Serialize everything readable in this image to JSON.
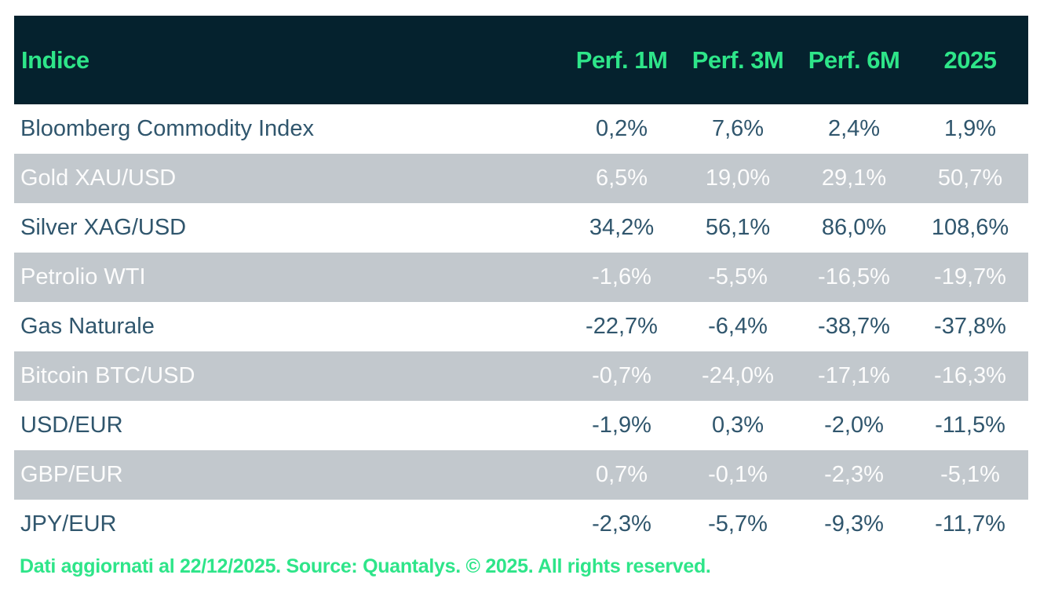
{
  "colors": {
    "header_bg": "#05222e",
    "accent_green": "#2ee589",
    "row_alt_bg": "#c2c8cd",
    "text_dark": "#30566d",
    "text_light": "#fcfcfc",
    "page_bg": "#ffffff"
  },
  "table": {
    "columns": [
      "Indice",
      "Perf. 1M",
      "Perf. 3M",
      "Perf. 6M",
      "2025"
    ],
    "rows": [
      {
        "name": "Bloomberg Commodity Index",
        "values": [
          "0,2%",
          "7,6%",
          "2,4%",
          "1,9%"
        ]
      },
      {
        "name": "Gold XAU/USD",
        "values": [
          "6,5%",
          "19,0%",
          "29,1%",
          "50,7%"
        ]
      },
      {
        "name": "Silver XAG/USD",
        "values": [
          "34,2%",
          "56,1%",
          "86,0%",
          "108,6%"
        ]
      },
      {
        "name": "Petrolio WTI",
        "values": [
          "-1,6%",
          "-5,5%",
          "-16,5%",
          "-19,7%"
        ]
      },
      {
        "name": "Gas Naturale",
        "values": [
          "-22,7%",
          "-6,4%",
          "-38,7%",
          "-37,8%"
        ]
      },
      {
        "name": "Bitcoin BTC/USD",
        "values": [
          "-0,7%",
          "-24,0%",
          "-17,1%",
          "-16,3%"
        ]
      },
      {
        "name": "USD/EUR",
        "values": [
          "-1,9%",
          "0,3%",
          "-2,0%",
          "-11,5%"
        ]
      },
      {
        "name": "GBP/EUR",
        "values": [
          "0,7%",
          "-0,1%",
          "-2,3%",
          "-5,1%"
        ]
      },
      {
        "name": "JPY/EUR",
        "values": [
          "-2,3%",
          "-5,7%",
          "-9,3%",
          "-11,7%"
        ]
      }
    ]
  },
  "footer": {
    "text": "Dati aggiornati al 22/12/2025. Source: Quantalys. © 2025. All rights reserved."
  },
  "chart_data": {
    "type": "table",
    "columns": [
      "Indice",
      "Perf. 1M",
      "Perf. 3M",
      "Perf. 6M",
      "2025"
    ],
    "unit": "percent",
    "rows": [
      [
        "Bloomberg Commodity Index",
        0.2,
        7.6,
        2.4,
        1.9
      ],
      [
        "Gold XAU/USD",
        6.5,
        19.0,
        29.1,
        50.7
      ],
      [
        "Silver XAG/USD",
        34.2,
        56.1,
        86.0,
        108.6
      ],
      [
        "Petrolio WTI",
        -1.6,
        -5.5,
        -16.5,
        -19.7
      ],
      [
        "Gas Naturale",
        -22.7,
        -6.4,
        -38.7,
        -37.8
      ],
      [
        "Bitcoin BTC/USD",
        -0.7,
        -24.0,
        -17.1,
        -16.3
      ],
      [
        "USD/EUR",
        -1.9,
        0.3,
        -2.0,
        -11.5
      ],
      [
        "GBP/EUR",
        0.7,
        -0.1,
        -2.3,
        -5.1
      ],
      [
        "JPY/EUR",
        -2.3,
        -5.7,
        -9.3,
        -11.7
      ]
    ],
    "footnote": "Dati aggiornati al 22/12/2025. Source: Quantalys. © 2025. All rights reserved.",
    "layout": {
      "alternating_row_shading": true,
      "header_style": "dark-navy with green text"
    }
  }
}
